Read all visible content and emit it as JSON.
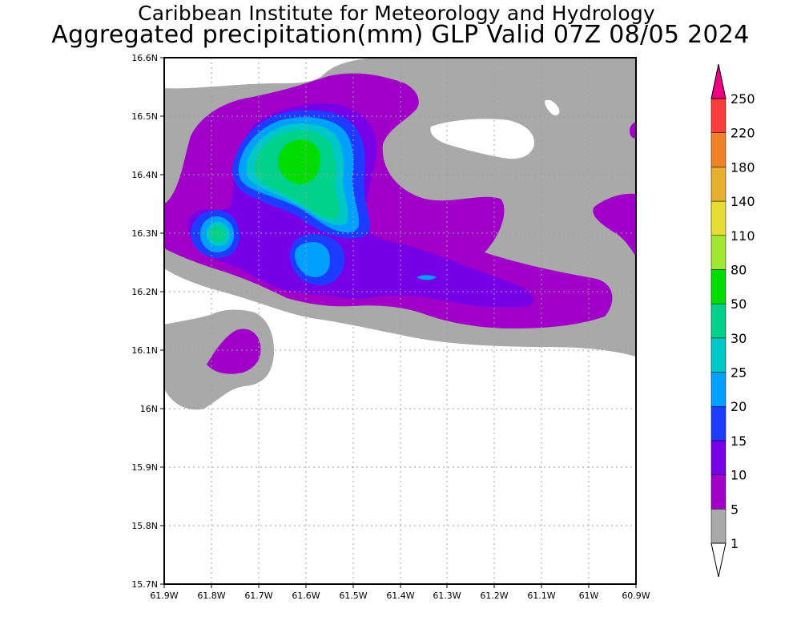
{
  "header": {
    "institution": "Caribbean Institute for Meteorology and Hydrology",
    "product_title": "Aggregated precipitation(mm) GLP Valid 07Z 08/05 2024"
  },
  "axes": {
    "y_ticks": [
      "15.7N",
      "15.8N",
      "15.9N",
      "16N",
      "16.1N",
      "16.2N",
      "16.3N",
      "16.4N",
      "16.5N",
      "16.6N"
    ],
    "x_ticks": [
      "61.9W",
      "61.8W",
      "61.7W",
      "61.6W",
      "61.5W",
      "61.4W",
      "61.3W",
      "61.2W",
      "61.1W",
      "61W",
      "60.9W"
    ]
  },
  "legend": {
    "levels": [
      {
        "label": "1",
        "color": "#ffffff"
      },
      {
        "label": "5",
        "color": "#a9a9a9"
      },
      {
        "label": "10",
        "color": "#a000c8"
      },
      {
        "label": "15",
        "color": "#7800e6"
      },
      {
        "label": "20",
        "color": "#1e3cff"
      },
      {
        "label": "25",
        "color": "#00a0ff"
      },
      {
        "label": "30",
        "color": "#00c8c8"
      },
      {
        "label": "50",
        "color": "#00d28c"
      },
      {
        "label": "80",
        "color": "#00dc00"
      },
      {
        "label": "110",
        "color": "#a0e632"
      },
      {
        "label": "140",
        "color": "#e6dc32"
      },
      {
        "label": "180",
        "color": "#e6af2d"
      },
      {
        "label": "220",
        "color": "#f08228"
      },
      {
        "label": "250",
        "color": "#fa3c3c"
      }
    ],
    "overflow_color": "#f00082",
    "underflow_color": "#ffffff"
  }
}
